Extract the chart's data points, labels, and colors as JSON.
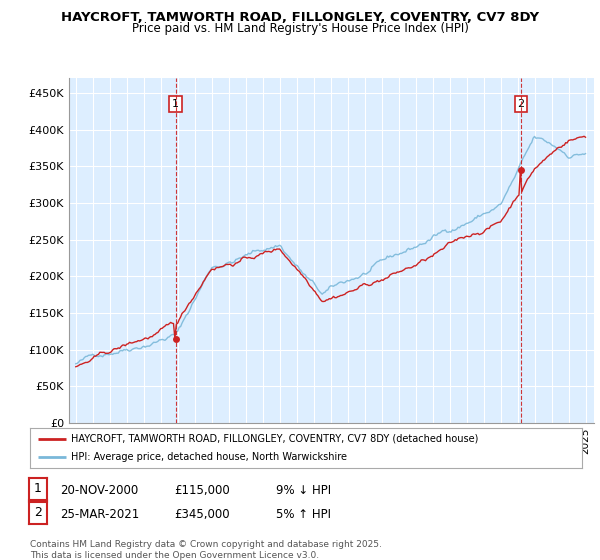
{
  "title": "HAYCROFT, TAMWORTH ROAD, FILLONGLEY, COVENTRY, CV7 8DY",
  "subtitle": "Price paid vs. HM Land Registry's House Price Index (HPI)",
  "ylim": [
    0,
    470000
  ],
  "yticks": [
    0,
    50000,
    100000,
    150000,
    200000,
    250000,
    300000,
    350000,
    400000,
    450000
  ],
  "ytick_labels": [
    "£0",
    "£50K",
    "£100K",
    "£150K",
    "£200K",
    "£250K",
    "£300K",
    "£350K",
    "£400K",
    "£450K"
  ],
  "hpi_color": "#7ab8d9",
  "price_color": "#cc2222",
  "marker_color": "#cc2222",
  "vline_color": "#cc2222",
  "background_color": "#ffffff",
  "chart_bg_color": "#ddeeff",
  "grid_color": "#ffffff",
  "sale1_price": 115000,
  "sale2_price": 345000,
  "legend_entry1": "HAYCROFT, TAMWORTH ROAD, FILLONGLEY, COVENTRY, CV7 8DY (detached house)",
  "legend_entry2": "HPI: Average price, detached house, North Warwickshire",
  "note1_date": "20-NOV-2000",
  "note1_price": "£115,000",
  "note1_hpi": "9% ↓ HPI",
  "note2_date": "25-MAR-2021",
  "note2_price": "£345,000",
  "note2_hpi": "5% ↑ HPI",
  "footer": "Contains HM Land Registry data © Crown copyright and database right 2025.\nThis data is licensed under the Open Government Licence v3.0."
}
